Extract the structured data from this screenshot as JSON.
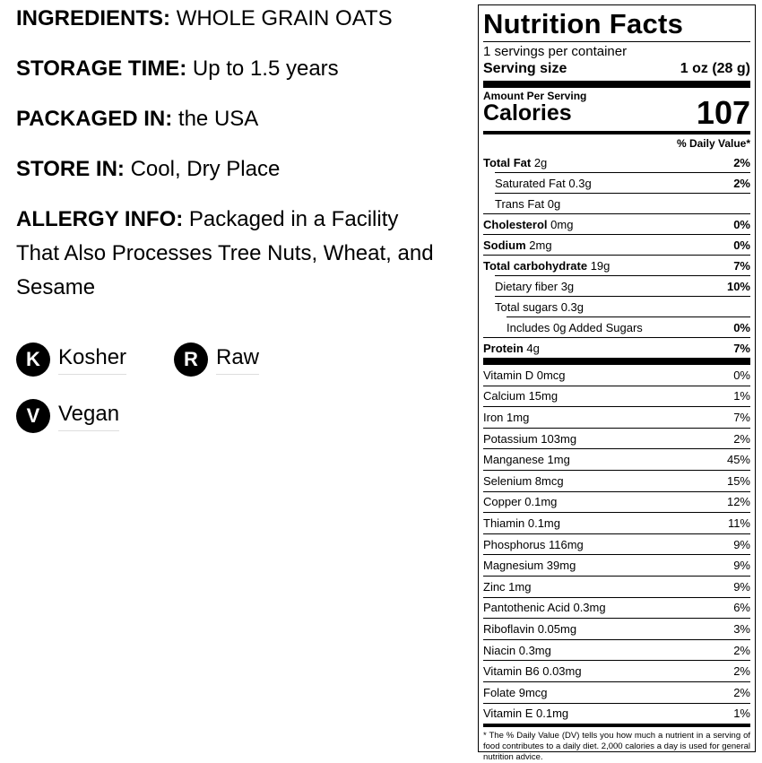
{
  "info": [
    {
      "label": "INGREDIENTS:",
      "text": "WHOLE GRAIN OATS"
    },
    {
      "label": "STORAGE TIME:",
      "text": "Up to 1.5 years"
    },
    {
      "label": "PACKAGED IN:",
      "text": "the USA"
    },
    {
      "label": "STORE IN:",
      "text": "Cool, Dry Place"
    },
    {
      "label": "ALLERGY INFO:",
      "text": "Packaged in a Facility That Also Processes Tree Nuts, Wheat, and Sesame"
    }
  ],
  "badges": [
    {
      "icon": "K",
      "label": "Kosher"
    },
    {
      "icon": "R",
      "label": "Raw"
    },
    {
      "icon": "V",
      "label": "Vegan"
    }
  ],
  "nutrition": {
    "title": "Nutrition Facts",
    "servings": "1 servings per container",
    "serving_size_label": "Serving size",
    "serving_size": "1 oz (28 g)",
    "amount_per_serving": "Amount Per Serving",
    "calories_label": "Calories",
    "calories": "107",
    "dv_header": "% Daily Value*",
    "nutrients": [
      {
        "name": "Total Fat",
        "amount": "2g",
        "dv": "2%"
      },
      {
        "name": "Saturated Fat",
        "amount": "0.3g",
        "dv": "2%"
      },
      {
        "name": "Trans Fat",
        "amount": "0g"
      },
      {
        "name": "Cholesterol",
        "amount": "0mg",
        "dv": "0%"
      },
      {
        "name": "Sodium",
        "amount": "2mg",
        "dv": "0%"
      },
      {
        "name": "Total carbohydrate",
        "amount": "19g",
        "dv": "7%"
      },
      {
        "name": "Dietary fiber",
        "amount": "3g",
        "dv": "10%"
      },
      {
        "name": "Total sugars",
        "amount": "0.3g"
      },
      {
        "name": "Includes 0g Added Sugars",
        "dv": "0%"
      },
      {
        "name": "Protein",
        "amount": "4g",
        "dv": "7%"
      }
    ],
    "vitamins": [
      {
        "name": "Vitamin D 0mcg",
        "dv": "0%"
      },
      {
        "name": "Calcium 15mg",
        "dv": "1%"
      },
      {
        "name": "Iron 1mg",
        "dv": "7%"
      },
      {
        "name": "Potassium 103mg",
        "dv": "2%"
      },
      {
        "name": "Manganese 1mg",
        "dv": "45%"
      },
      {
        "name": "Selenium 8mcg",
        "dv": "15%"
      },
      {
        "name": "Copper 0.1mg",
        "dv": "12%"
      },
      {
        "name": "Thiamin 0.1mg",
        "dv": "11%"
      },
      {
        "name": "Phosphorus 116mg",
        "dv": "9%"
      },
      {
        "name": "Magnesium 39mg",
        "dv": "9%"
      },
      {
        "name": "Zinc 1mg",
        "dv": "9%"
      },
      {
        "name": "Pantothenic Acid 0.3mg",
        "dv": "6%"
      },
      {
        "name": "Riboflavin 0.05mg",
        "dv": "3%"
      },
      {
        "name": "Niacin 0.3mg",
        "dv": "2%"
      },
      {
        "name": "Vitamin B6 0.03mg",
        "dv": "2%"
      },
      {
        "name": "Folate 9mcg",
        "dv": "2%"
      },
      {
        "name": "Vitamin E 0.1mg",
        "dv": "1%"
      }
    ],
    "footnote": "* The % Daily Value (DV) tells you how much a nutrient in a serving of food contributes to a daily diet. 2,000 calories a day is used for general nutrition advice."
  }
}
